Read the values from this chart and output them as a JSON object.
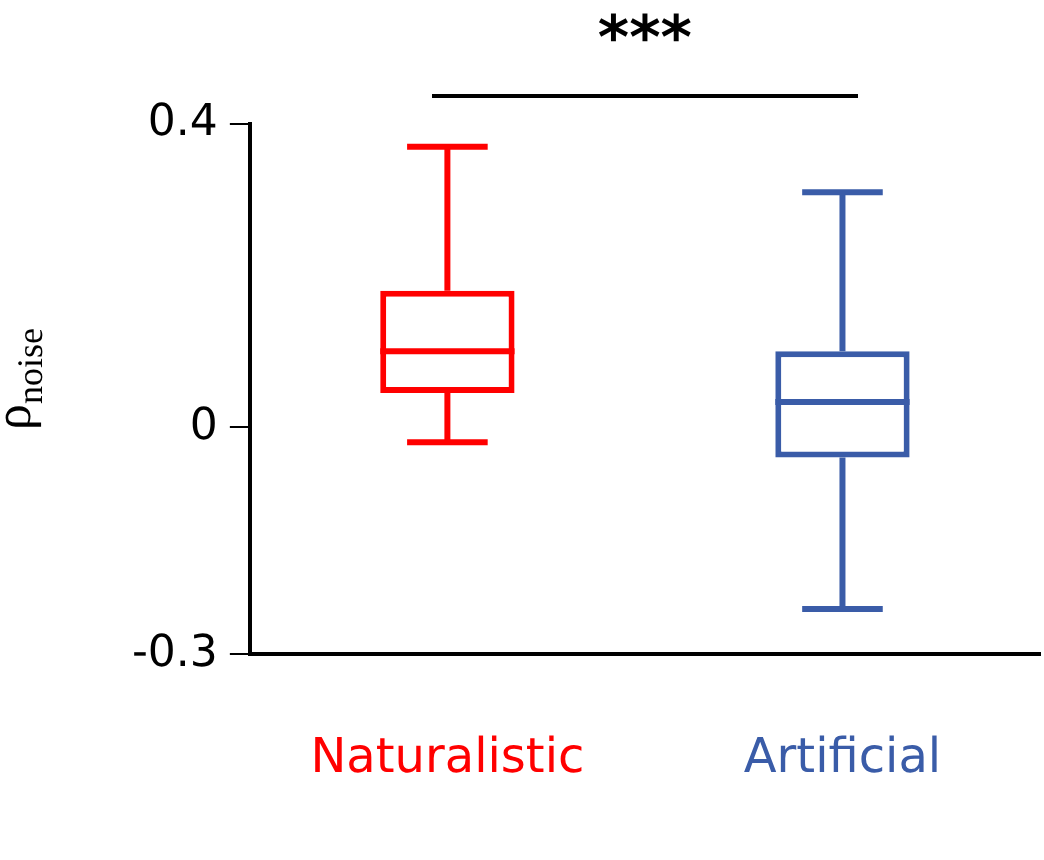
{
  "chart_data": {
    "type": "box",
    "ylabel": "ρ$_{noise}$",
    "annotations": [
      "***"
    ],
    "categories": [
      "Naturalistic",
      "Artificial"
    ],
    "colors": [
      "#ff0000",
      "#3a5ca8"
    ],
    "boxes": [
      {
        "low": -0.02,
        "q1": 0.045,
        "median": 0.1,
        "q3": 0.18,
        "high": 0.37
      },
      {
        "low": -0.24,
        "q1": -0.04,
        "median": 0.033,
        "q3": 0.1,
        "high": 0.31
      }
    ],
    "ylim": [
      -0.3,
      0.4
    ],
    "yticks": [
      -0.3,
      0,
      0.4
    ],
    "grid": false,
    "legend": false
  }
}
